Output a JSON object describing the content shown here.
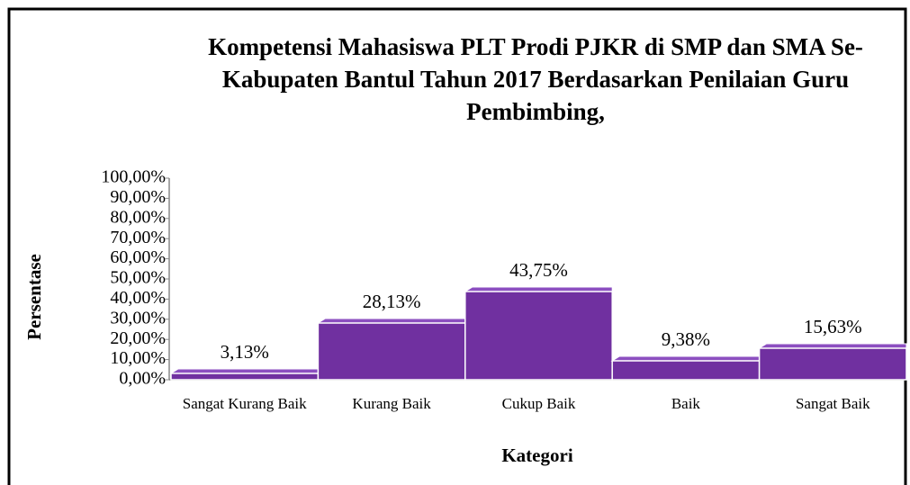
{
  "chart_data": {
    "type": "bar3d",
    "title": "Kompetensi Mahasiswa PLT Prodi PJKR di SMP dan SMA Se-Kabupaten Bantul Tahun 2017 Berdasarkan Penilaian Guru Pembimbing,",
    "categories": [
      "Sangat Kurang Baik",
      "Kurang Baik",
      "Cukup Baik",
      "Baik",
      "Sangat Baik"
    ],
    "values": [
      3.13,
      28.13,
      43.75,
      9.38,
      15.63
    ],
    "value_labels": [
      "3,13%",
      "28,13%",
      "43,75%",
      "9,38%",
      "15,63%"
    ],
    "color": "#7030a0",
    "xlabel": "Kategori",
    "ylabel": "Persentase",
    "ylim": [
      0,
      100
    ],
    "yticks": [
      {
        "value": 0,
        "label": "0,00%"
      },
      {
        "value": 10,
        "label": "10,00%"
      },
      {
        "value": 20,
        "label": "20,00%"
      },
      {
        "value": 30,
        "label": "30,00%"
      },
      {
        "value": 40,
        "label": "40,00%"
      },
      {
        "value": 50,
        "label": "50,00%"
      },
      {
        "value": 60,
        "label": "60,00%"
      },
      {
        "value": 70,
        "label": "70,00%"
      },
      {
        "value": 80,
        "label": "80,00%"
      },
      {
        "value": 90,
        "label": "90,00%"
      },
      {
        "value": 100,
        "label": "100,00%"
      }
    ],
    "grid": false
  }
}
